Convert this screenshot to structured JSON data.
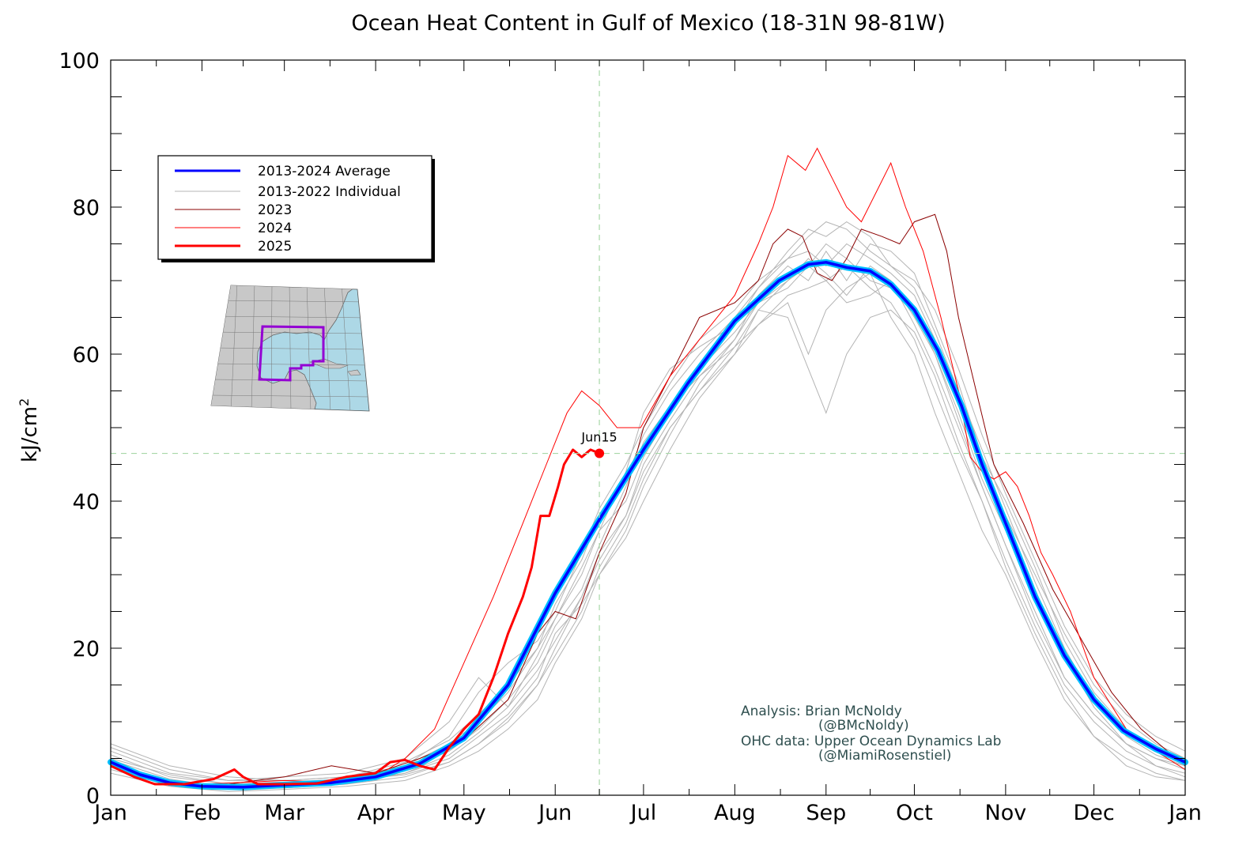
{
  "chart_data": {
    "type": "line",
    "title": "Ocean Heat Content in Gulf of Mexico (18-31N 98-81W)",
    "xlabel": "",
    "ylabel": "kJ/cm",
    "ylabel_sup": "2",
    "x_unit": "day of year",
    "xlim": [
      0,
      365
    ],
    "ylim": [
      0,
      100
    ],
    "y_ticks": [
      0,
      20,
      40,
      60,
      80,
      100
    ],
    "x_tick_labels": [
      "Jan",
      "Feb",
      "Mar",
      "Apr",
      "May",
      "Jun",
      "Jul",
      "Aug",
      "Sep",
      "Oct",
      "Nov",
      "Dec",
      "Jan"
    ],
    "x_tick_days": [
      0,
      31,
      59,
      90,
      120,
      151,
      181,
      212,
      243,
      273,
      304,
      334,
      365
    ],
    "grid": false,
    "legend_position": "top-left",
    "legend": [
      {
        "label": "2013-2024 Average",
        "color": "#0000ff",
        "width": 3
      },
      {
        "label": "2013-2022 Individual",
        "color": "#b4b4b4",
        "width": 1
      },
      {
        "label": "2023",
        "color": "#8b0000",
        "width": 1
      },
      {
        "label": "2024",
        "color": "#ff0000",
        "width": 1
      },
      {
        "label": "2025",
        "color": "#ff0000",
        "width": 3
      }
    ],
    "reference_lines": {
      "vertical_day": 166,
      "horizontal_value": 46.5,
      "color": "#a8d8a8"
    },
    "current_point": {
      "label": "Jun15",
      "day": 166,
      "value": 46.5
    },
    "series": [
      {
        "name": "2013-2024 Average",
        "color": "#0000ff",
        "x": [
          0,
          10,
          20,
          31,
          45,
          59,
          75,
          90,
          105,
          120,
          135,
          151,
          166,
          181,
          196,
          212,
          227,
          237,
          243,
          250,
          258,
          265,
          273,
          281,
          289,
          296,
          304,
          314,
          324,
          334,
          344,
          355,
          365
        ],
        "y": [
          4.5,
          2.8,
          1.7,
          1.2,
          1.1,
          1.4,
          1.7,
          2.5,
          4.3,
          7.8,
          15.0,
          27.5,
          37.5,
          47.0,
          56.0,
          64.5,
          70.0,
          72.2,
          72.5,
          71.8,
          71.3,
          69.5,
          66.0,
          60.5,
          53.0,
          45.0,
          37.0,
          27.0,
          19.0,
          13.0,
          8.8,
          6.3,
          4.5
        ]
      },
      {
        "name": "2023",
        "color": "#8b0000",
        "x": [
          0,
          20,
          40,
          59,
          75,
          90,
          105,
          120,
          135,
          145,
          151,
          158,
          166,
          175,
          181,
          190,
          200,
          212,
          220,
          225,
          230,
          235,
          240,
          245,
          250,
          255,
          262,
          268,
          273,
          280,
          284,
          288,
          294,
          300,
          310,
          320,
          330,
          340,
          350,
          365
        ],
        "y": [
          4.5,
          1.5,
          1.5,
          2.5,
          4.0,
          3.0,
          5.0,
          7.5,
          13.0,
          22.0,
          25.0,
          24.0,
          33.0,
          41.0,
          50.0,
          57.0,
          65.0,
          67.0,
          70.0,
          75.0,
          77.0,
          76.0,
          71.0,
          70.0,
          73.0,
          77.0,
          76.0,
          75.0,
          78.0,
          79.0,
          74.0,
          65.0,
          55.0,
          45.0,
          37.0,
          28.0,
          21.0,
          14.0,
          9.0,
          4.0
        ]
      },
      {
        "name": "2024",
        "color": "#ff0000",
        "x": [
          0,
          15,
          31,
          59,
          75,
          90,
          100,
          110,
          120,
          130,
          140,
          148,
          155,
          160,
          166,
          172,
          180,
          190,
          200,
          212,
          220,
          225,
          230,
          236,
          240,
          245,
          250,
          255,
          260,
          265,
          270,
          276,
          282,
          288,
          292,
          296,
          300,
          304,
          308,
          312,
          316,
          320,
          326,
          334,
          345,
          355,
          365
        ],
        "y": [
          4.0,
          2.0,
          1.5,
          2.0,
          1.8,
          2.5,
          5.0,
          9.0,
          18.0,
          27.0,
          37.0,
          45.0,
          52.0,
          55.0,
          53.0,
          50.0,
          50.0,
          57.0,
          62.0,
          68.0,
          75.0,
          80.0,
          87.0,
          85.0,
          88.0,
          84.0,
          80.0,
          78.0,
          82.0,
          86.0,
          80.0,
          74.0,
          65.0,
          55.0,
          46.0,
          44.0,
          43.0,
          44.0,
          42.0,
          38.0,
          33.0,
          30.0,
          25.0,
          16.0,
          9.0,
          6.0,
          3.5
        ]
      },
      {
        "name": "2025",
        "color": "#ff0000",
        "x": [
          0,
          8,
          15,
          25,
          35,
          42,
          45,
          50,
          59,
          70,
          80,
          90,
          95,
          100,
          105,
          110,
          115,
          120,
          125,
          130,
          135,
          140,
          143,
          146,
          149,
          152,
          154,
          157,
          160,
          163,
          166
        ],
        "y": [
          4.0,
          2.5,
          1.5,
          1.5,
          2.2,
          3.5,
          2.5,
          1.5,
          1.5,
          1.6,
          2.5,
          3.0,
          4.5,
          4.8,
          4.0,
          3.5,
          6.5,
          9.0,
          11.0,
          16.0,
          22.0,
          27.0,
          31.0,
          38.0,
          38.0,
          42.0,
          45.0,
          47.0,
          46.0,
          47.0,
          46.5
        ]
      }
    ],
    "individual_years": [
      {
        "x": [
          0,
          20,
          40,
          59,
          80,
          100,
          115,
          125,
          135,
          145,
          151,
          160,
          166,
          175,
          181,
          190,
          200,
          212,
          220,
          230,
          237,
          243,
          250,
          258,
          265,
          273,
          280,
          288,
          296,
          304,
          314,
          324,
          334,
          345,
          355,
          365
        ],
        "y": [
          5.5,
          2.5,
          1.5,
          1.5,
          2.0,
          4.0,
          7.0,
          10.0,
          14.0,
          20.0,
          24.0,
          30.0,
          36.0,
          40.0,
          46.0,
          52.0,
          58.0,
          63.0,
          67.0,
          70.0,
          73.0,
          71.0,
          68.0,
          72.0,
          70.0,
          64.0,
          58.0,
          50.0,
          42.0,
          34.0,
          25.0,
          16.0,
          11.0,
          7.0,
          5.0,
          3.5
        ]
      },
      {
        "x": [
          0,
          20,
          40,
          59,
          80,
          100,
          115,
          125,
          135,
          145,
          151,
          160,
          166,
          175,
          181,
          190,
          200,
          212,
          220,
          230,
          237,
          243,
          250,
          258,
          265,
          273,
          280,
          288,
          296,
          304,
          314,
          324,
          334,
          345,
          355,
          365
        ],
        "y": [
          3.5,
          1.5,
          0.8,
          1.0,
          1.5,
          2.5,
          4.5,
          7.0,
          10.0,
          15.0,
          20.0,
          27.0,
          33.0,
          38.0,
          44.0,
          50.0,
          55.0,
          60.0,
          64.0,
          68.0,
          69.0,
          70.0,
          72.0,
          69.0,
          67.0,
          62.0,
          55.0,
          47.0,
          40.0,
          32.0,
          23.0,
          15.0,
          10.0,
          6.0,
          4.0,
          2.5
        ]
      },
      {
        "x": [
          0,
          20,
          40,
          59,
          80,
          100,
          115,
          125,
          135,
          145,
          151,
          160,
          166,
          175,
          181,
          190,
          200,
          212,
          220,
          230,
          237,
          243,
          250,
          258,
          265,
          273,
          280,
          288,
          296,
          304,
          314,
          324,
          334,
          345,
          355,
          365
        ],
        "y": [
          6.5,
          3.5,
          2.0,
          2.0,
          2.5,
          4.0,
          8.0,
          14.0,
          18.0,
          21.0,
          25.0,
          33.0,
          39.0,
          45.0,
          50.0,
          56.0,
          62.0,
          66.0,
          70.0,
          73.0,
          74.0,
          72.0,
          75.0,
          73.0,
          71.0,
          68.0,
          62.0,
          54.0,
          45.0,
          38.0,
          30.0,
          22.0,
          15.0,
          10.0,
          7.0,
          5.0
        ]
      },
      {
        "x": [
          0,
          20,
          40,
          59,
          80,
          100,
          115,
          125,
          135,
          145,
          151,
          160,
          166,
          175,
          181,
          190,
          200,
          212,
          220,
          230,
          237,
          243,
          250,
          258,
          265,
          273,
          280,
          288,
          296,
          304,
          314,
          324,
          334,
          345,
          355,
          365
        ],
        "y": [
          4.0,
          2.0,
          1.2,
          1.0,
          1.5,
          3.0,
          5.0,
          8.0,
          11.0,
          16.0,
          22.0,
          26.0,
          30.0,
          35.0,
          40.0,
          47.0,
          54.0,
          60.0,
          66.0,
          65.0,
          58.0,
          52.0,
          60.0,
          65.0,
          66.0,
          63.0,
          57.0,
          48.0,
          40.0,
          31.0,
          22.0,
          14.0,
          8.0,
          4.0,
          2.5,
          2.0
        ]
      },
      {
        "x": [
          0,
          20,
          40,
          59,
          80,
          100,
          115,
          125,
          135,
          145,
          151,
          160,
          166,
          175,
          181,
          190,
          200,
          212,
          220,
          230,
          237,
          243,
          250,
          258,
          265,
          273,
          280,
          288,
          296,
          304,
          314,
          324,
          334,
          345,
          355,
          365
        ],
        "y": [
          5.0,
          2.8,
          1.5,
          1.8,
          2.2,
          3.5,
          6.0,
          9.0,
          13.0,
          18.0,
          23.0,
          28.0,
          34.0,
          42.0,
          48.0,
          53.0,
          57.0,
          62.0,
          68.0,
          72.0,
          70.0,
          74.0,
          70.0,
          75.0,
          74.0,
          71.0,
          64.0,
          56.0,
          46.0,
          40.0,
          31.0,
          21.0,
          14.0,
          9.0,
          6.0,
          4.5
        ]
      },
      {
        "x": [
          0,
          20,
          40,
          59,
          80,
          100,
          115,
          125,
          135,
          145,
          151,
          160,
          166,
          175,
          181,
          190,
          200,
          212,
          220,
          230,
          237,
          243,
          250,
          258,
          265,
          273,
          280,
          288,
          296,
          304,
          314,
          324,
          334,
          345,
          355,
          365
        ],
        "y": [
          3.0,
          1.2,
          0.5,
          0.8,
          1.2,
          2.0,
          4.0,
          6.0,
          9.0,
          13.0,
          18.0,
          24.0,
          30.0,
          36.0,
          42.0,
          49.0,
          56.0,
          62.0,
          67.0,
          69.0,
          72.0,
          75.0,
          73.0,
          70.0,
          69.0,
          66.0,
          60.0,
          51.0,
          42.0,
          34.0,
          24.0,
          16.0,
          11.0,
          7.0,
          4.0,
          3.0
        ]
      },
      {
        "x": [
          0,
          20,
          40,
          59,
          80,
          100,
          115,
          125,
          135,
          145,
          151,
          160,
          166,
          175,
          181,
          190,
          200,
          212,
          220,
          230,
          237,
          243,
          250,
          258,
          265,
          273,
          280,
          288,
          296,
          304,
          314,
          324,
          334,
          345,
          355,
          365
        ],
        "y": [
          6.0,
          3.0,
          2.0,
          2.5,
          3.0,
          5.0,
          10.0,
          16.0,
          12.0,
          19.0,
          24.0,
          31.0,
          36.0,
          44.0,
          52.0,
          58.0,
          61.0,
          64.0,
          69.0,
          74.0,
          77.0,
          76.0,
          78.0,
          76.0,
          72.0,
          69.0,
          63.0,
          55.0,
          47.0,
          39.0,
          29.0,
          20.0,
          13.0,
          8.0,
          5.5,
          4.0
        ]
      },
      {
        "x": [
          0,
          20,
          40,
          59,
          80,
          100,
          115,
          125,
          135,
          145,
          151,
          160,
          166,
          175,
          181,
          190,
          200,
          212,
          220,
          230,
          237,
          243,
          250,
          258,
          265,
          273,
          280,
          288,
          296,
          304,
          314,
          324,
          334,
          345,
          355,
          365
        ],
        "y": [
          4.8,
          2.2,
          1.0,
          1.2,
          1.8,
          3.0,
          5.5,
          8.5,
          12.0,
          17.0,
          21.0,
          27.0,
          32.0,
          38.0,
          45.0,
          51.0,
          57.0,
          61.0,
          66.0,
          70.0,
          72.0,
          70.0,
          67.0,
          68.0,
          70.0,
          65.0,
          60.0,
          52.0,
          43.0,
          36.0,
          28.0,
          19.0,
          12.0,
          7.0,
          5.0,
          4.0
        ]
      },
      {
        "x": [
          0,
          20,
          40,
          59,
          80,
          100,
          115,
          125,
          135,
          145,
          151,
          160,
          166,
          175,
          181,
          190,
          200,
          212,
          220,
          230,
          237,
          243,
          250,
          258,
          265,
          273,
          280,
          288,
          296,
          304,
          314,
          324,
          334,
          345,
          355,
          365
        ],
        "y": [
          7.0,
          4.0,
          2.5,
          2.0,
          2.5,
          4.5,
          7.5,
          11.0,
          15.0,
          20.0,
          26.0,
          32.0,
          38.0,
          43.0,
          49.0,
          55.0,
          60.0,
          65.0,
          69.0,
          73.0,
          76.0,
          78.0,
          77.0,
          74.0,
          72.0,
          70.0,
          66.0,
          58.0,
          49.0,
          41.0,
          32.0,
          23.0,
          16.0,
          11.0,
          8.0,
          6.0
        ]
      },
      {
        "x": [
          0,
          20,
          40,
          59,
          80,
          100,
          115,
          125,
          135,
          145,
          151,
          160,
          166,
          175,
          181,
          190,
          200,
          212,
          220,
          230,
          237,
          243,
          250,
          258,
          265,
          273,
          280,
          288,
          296,
          304,
          314,
          324,
          334,
          345,
          355,
          365
        ],
        "y": [
          3.8,
          1.8,
          1.2,
          1.5,
          2.0,
          2.8,
          4.5,
          7.0,
          10.5,
          15.0,
          19.0,
          25.0,
          31.0,
          37.0,
          43.0,
          50.0,
          55.0,
          61.0,
          64.0,
          67.0,
          60.0,
          66.0,
          69.0,
          71.0,
          65.0,
          60.0,
          52.0,
          44.0,
          36.0,
          30.0,
          21.0,
          13.0,
          8.0,
          5.0,
          3.0,
          2.0
        ]
      }
    ]
  },
  "credits": {
    "line1": "Analysis: Brian McNoldy",
    "line2": "(@BMcNoldy)",
    "line3": "OHC data: Upper Ocean Dynamics Lab",
    "line4": "(@MiamiRosenstiel)"
  },
  "inset_map": {
    "icon": "gulf-of-mexico-map-icon",
    "land_color": "#c8c8c8",
    "ocean_color": "#add8e6",
    "box_color": "#9400d3"
  }
}
